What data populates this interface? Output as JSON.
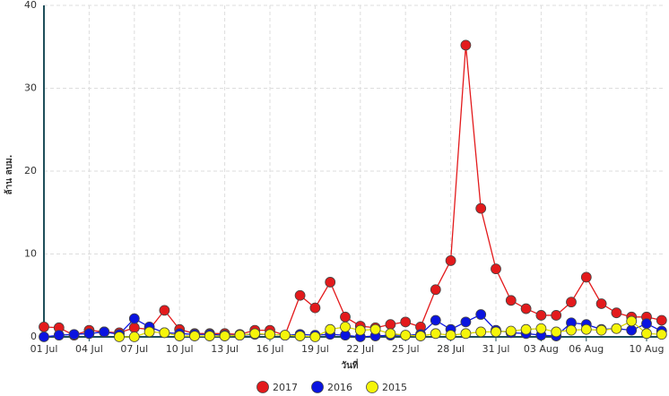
{
  "chart_data": {
    "type": "line",
    "x_label": "วันที่",
    "y_label": "ล้าน ลบม.",
    "categories": [
      "01 Jul",
      null,
      null,
      "04 Jul",
      null,
      null,
      "07 Jul",
      null,
      null,
      "10 Jul",
      null,
      null,
      "13 Jul",
      null,
      null,
      "16 Jul",
      null,
      null,
      "19 Jul",
      null,
      null,
      "22 Jul",
      null,
      null,
      "25 Jul",
      null,
      null,
      "28 Jul",
      null,
      null,
      "31 Jul",
      null,
      null,
      "03 Aug",
      null,
      null,
      "06 Aug",
      null,
      null,
      null,
      "10 Aug",
      null
    ],
    "series": [
      {
        "name": "2017",
        "color": "#e31a1c",
        "values": [
          1.2,
          1.1,
          0.2,
          0.8,
          0.6,
          0.5,
          1.1,
          0.9,
          3.2,
          0.9,
          0.4,
          0.4,
          0.4,
          0.3,
          0.8,
          0.8,
          0.2,
          5.0,
          3.5,
          6.6,
          2.4,
          1.3,
          1.1,
          1.5,
          1.8,
          1.2,
          5.7,
          9.2,
          35.2,
          15.5,
          8.2,
          4.4,
          3.4,
          2.6,
          2.6,
          4.2,
          7.2,
          4.0,
          2.9,
          2.4,
          2.4,
          2.0
        ]
      },
      {
        "name": "2016",
        "color": "#0a14e0",
        "values": [
          0,
          0.2,
          0.3,
          0.4,
          0.6,
          0.3,
          2.2,
          1.2,
          0.5,
          0.4,
          0.3,
          0.3,
          0.2,
          0.2,
          0.3,
          0.3,
          0.2,
          0.3,
          0.2,
          0.3,
          0.2,
          0,
          0.1,
          0.2,
          0.2,
          0.3,
          2.0,
          0.9,
          1.8,
          2.7,
          0.8,
          0.5,
          0.4,
          0.2,
          0.1,
          1.7,
          1.5,
          0.9,
          1.0,
          0.8,
          1.6,
          0.7
        ]
      },
      {
        "name": "2015",
        "color": "#f5f50a",
        "values": [
          null,
          null,
          null,
          null,
          null,
          0,
          0,
          0.6,
          0.5,
          0.1,
          0.1,
          0.1,
          0.1,
          0.2,
          0.4,
          0.3,
          0.2,
          0.1,
          0,
          0.9,
          1.2,
          0.8,
          0.9,
          0.4,
          0.2,
          0.1,
          0.4,
          0.2,
          0.4,
          0.6,
          0.6,
          0.7,
          0.9,
          1.0,
          0.6,
          0.8,
          0.9,
          0.8,
          1.0,
          1.9,
          0.4,
          0.3
        ]
      }
    ],
    "ylim": [
      0,
      40
    ],
    "yticks": [
      0,
      10,
      20,
      30,
      40
    ],
    "grid": true,
    "legend": "bottom"
  }
}
